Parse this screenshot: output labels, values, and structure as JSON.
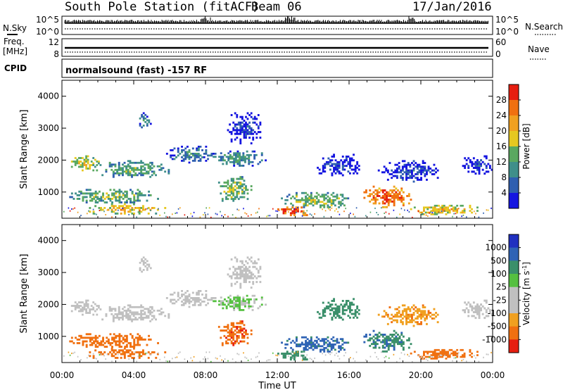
{
  "header": {
    "station": "South Pole Station (fitACF)",
    "beam": "Beam 06",
    "date": "17/Jan/2016"
  },
  "info_panel": {
    "left_labels": {
      "nsky": "N.Sky",
      "freq": "Freq.",
      "freq_unit": "[MHz]",
      "cpid": "CPID"
    },
    "right_labels": {
      "nsearch": "N.Search",
      "nave": "Nave"
    },
    "noise_axis_left": [
      "10^5",
      "10^0"
    ],
    "noise_axis_right": [
      "10^5",
      "10^0"
    ],
    "freq_axis": [
      "12",
      "8"
    ],
    "nave_axis": [
      "60",
      "0"
    ],
    "cpid_text": "normalsound (fast) -157 RF"
  },
  "chart_data": [
    {
      "type": "heatmap",
      "name": "power",
      "xlabel": "",
      "ylabel": "Slant Range [km]",
      "x_ticks": [
        "00:00",
        "04:00",
        "08:00",
        "12:00",
        "16:00",
        "20:00",
        "00:00"
      ],
      "y_ticks": [
        1000,
        2000,
        3000,
        4000
      ],
      "xlim_hours": [
        0,
        24
      ],
      "ylim_km": [
        180,
        4500
      ],
      "colorbar": {
        "label": "Power [dB]",
        "ticks": [
          "4",
          "8",
          "12",
          "16",
          "20",
          "24",
          "28"
        ],
        "range": [
          0,
          30
        ]
      },
      "regions": [
        {
          "t0": 0.4,
          "t1": 2.2,
          "r0": 1600,
          "r1": 2150,
          "level": 18
        },
        {
          "t0": 2.0,
          "t1": 6.0,
          "r0": 1450,
          "r1": 2000,
          "level": 14
        },
        {
          "t0": 5.8,
          "t1": 8.6,
          "r0": 1900,
          "r1": 2450,
          "level": 10
        },
        {
          "t0": 8.4,
          "t1": 11.4,
          "r0": 1800,
          "r1": 2300,
          "level": 12
        },
        {
          "t0": 0.3,
          "t1": 5.4,
          "r0": 650,
          "r1": 1100,
          "level": 15
        },
        {
          "t0": 1.2,
          "t1": 5.8,
          "r0": 300,
          "r1": 650,
          "level": 20
        },
        {
          "t0": 8.6,
          "t1": 10.6,
          "r0": 700,
          "r1": 1500,
          "level": 16
        },
        {
          "t0": 9.2,
          "t1": 11.2,
          "r0": 2500,
          "r1": 3500,
          "level": 5
        },
        {
          "t0": 12.0,
          "t1": 13.8,
          "r0": 250,
          "r1": 550,
          "level": 29
        },
        {
          "t0": 12.2,
          "t1": 16.2,
          "r0": 500,
          "r1": 1000,
          "level": 16
        },
        {
          "t0": 14.2,
          "t1": 16.6,
          "r0": 1500,
          "r1": 2200,
          "level": 5
        },
        {
          "t0": 16.8,
          "t1": 19.6,
          "r0": 500,
          "r1": 1200,
          "level": 27
        },
        {
          "t0": 19.4,
          "t1": 23.2,
          "r0": 280,
          "r1": 600,
          "level": 21
        },
        {
          "t0": 17.6,
          "t1": 21.2,
          "r0": 1300,
          "r1": 2000,
          "level": 6
        },
        {
          "t0": 22.2,
          "t1": 24.0,
          "r0": 1550,
          "r1": 2150,
          "level": 5
        },
        {
          "t0": 4.2,
          "t1": 5.0,
          "r0": 3000,
          "r1": 3500,
          "level": 9
        }
      ]
    },
    {
      "type": "heatmap",
      "name": "velocity",
      "xlabel": "Time UT",
      "ylabel": "Slant Range [km]",
      "x_ticks": [
        "00:00",
        "04:00",
        "08:00",
        "12:00",
        "16:00",
        "20:00",
        "00:00"
      ],
      "y_ticks": [
        1000,
        2000,
        3000,
        4000
      ],
      "xlim_hours": [
        0,
        24
      ],
      "ylim_km": [
        180,
        4500
      ],
      "colorbar": {
        "label": "Velocity [m s^-1]",
        "ticks": [
          "1000",
          "500",
          "100",
          "25",
          "-25",
          "-100",
          "-500",
          "-1000"
        ]
      },
      "regions": [
        {
          "t0": 0.4,
          "t1": 2.2,
          "r0": 1600,
          "r1": 2150,
          "level": 0
        },
        {
          "t0": 2.0,
          "t1": 6.0,
          "r0": 1450,
          "r1": 2000,
          "level": 0
        },
        {
          "t0": 5.8,
          "t1": 8.6,
          "r0": 1900,
          "r1": 2450,
          "level": 0
        },
        {
          "t0": 8.4,
          "t1": 11.4,
          "r0": 1800,
          "r1": 2300,
          "level": 30
        },
        {
          "t0": 0.3,
          "t1": 5.4,
          "r0": 650,
          "r1": 1100,
          "level": -200
        },
        {
          "t0": 1.2,
          "t1": 5.8,
          "r0": 300,
          "r1": 650,
          "level": -300
        },
        {
          "t0": 8.6,
          "t1": 10.6,
          "r0": 700,
          "r1": 1500,
          "level": -400
        },
        {
          "t0": 9.2,
          "t1": 11.2,
          "r0": 2500,
          "r1": 3500,
          "level": 0
        },
        {
          "t0": 12.0,
          "t1": 13.8,
          "r0": 250,
          "r1": 550,
          "level": 300
        },
        {
          "t0": 12.2,
          "t1": 16.2,
          "r0": 500,
          "r1": 1000,
          "level": 700
        },
        {
          "t0": 14.2,
          "t1": 16.6,
          "r0": 1500,
          "r1": 2200,
          "level": 200
        },
        {
          "t0": 16.8,
          "t1": 19.6,
          "r0": 500,
          "r1": 1200,
          "level": 400
        },
        {
          "t0": 19.4,
          "t1": 23.2,
          "r0": 280,
          "r1": 600,
          "level": -300
        },
        {
          "t0": 17.6,
          "t1": 21.2,
          "r0": 1300,
          "r1": 2000,
          "level": -80
        },
        {
          "t0": 22.2,
          "t1": 24.0,
          "r0": 1550,
          "r1": 2150,
          "level": 0
        },
        {
          "t0": 4.2,
          "t1": 5.0,
          "r0": 3000,
          "r1": 3500,
          "level": 0
        }
      ]
    }
  ]
}
